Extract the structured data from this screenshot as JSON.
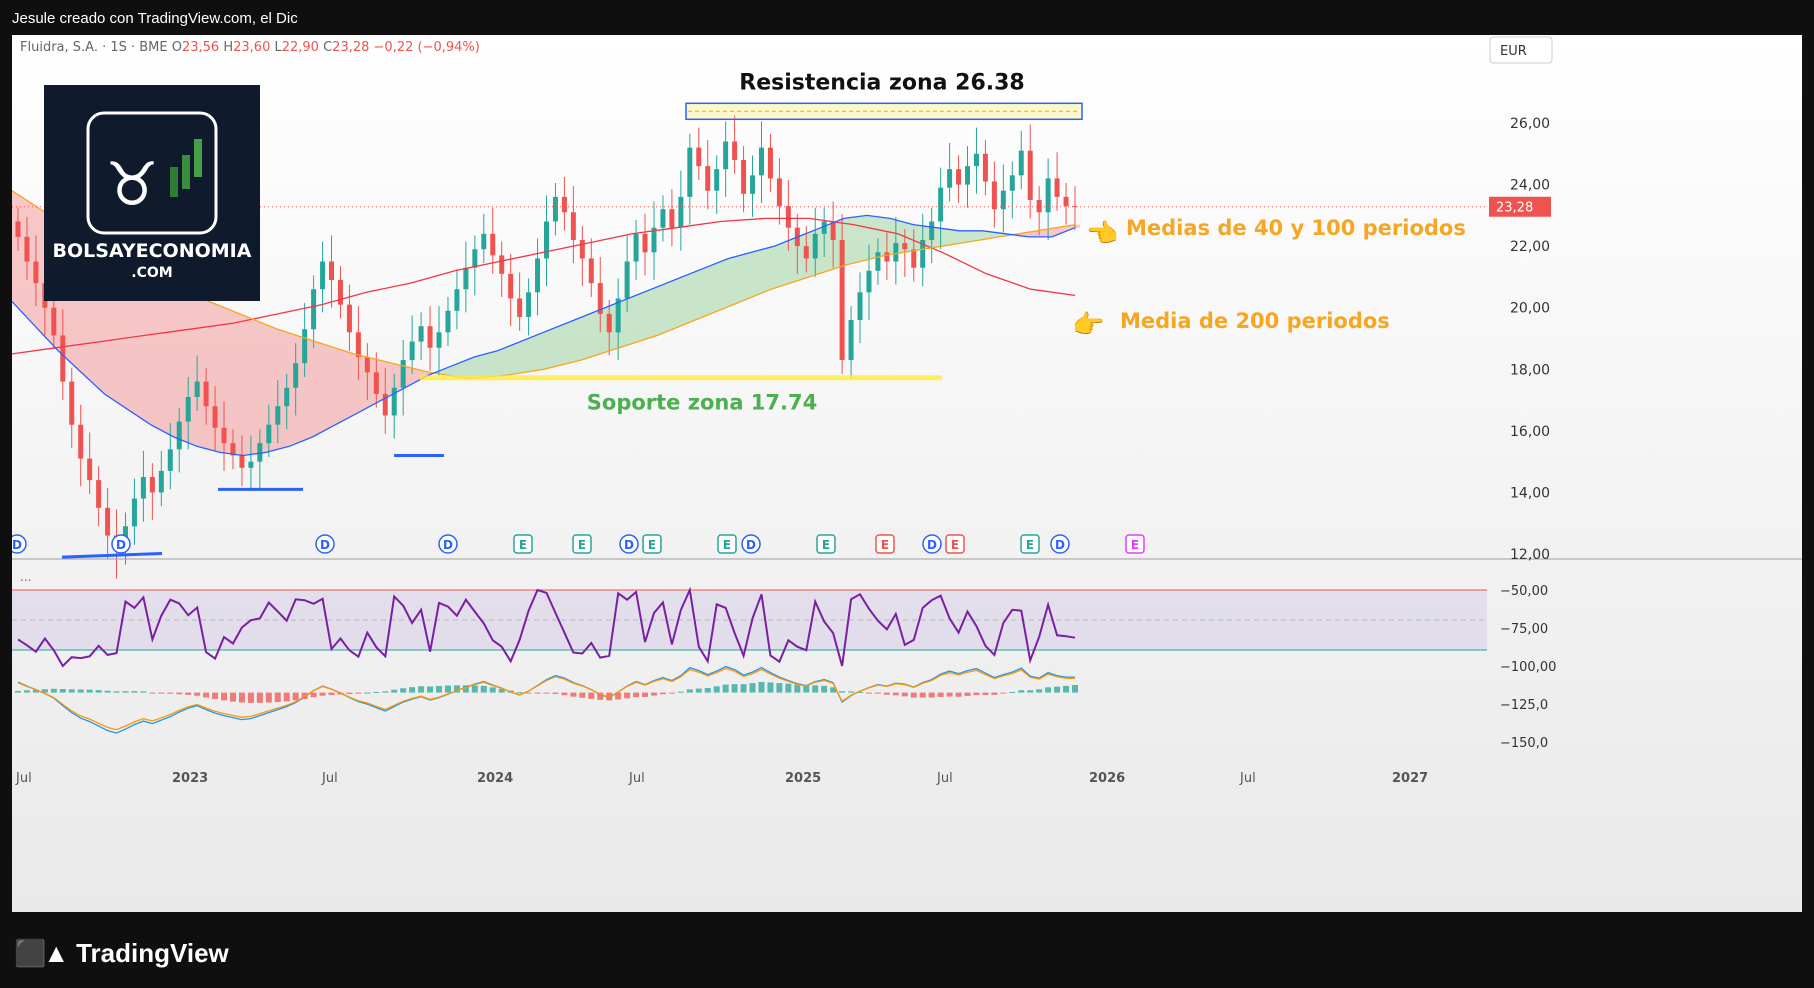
{
  "caption": "Jesule creado con TradingView.com, el Dic",
  "ohlc_header": {
    "symbol": "Fluidra, S.A. · 1S · BME",
    "o_label": "O",
    "o": "23,56",
    "h_label": "H",
    "h": "23,60",
    "l_label": "L",
    "l": "22,90",
    "c_label": "C",
    "c": "23,28",
    "change": "−0,22 (−0,94%)"
  },
  "currency": "EUR",
  "last_price": "23,28",
  "logo": {
    "line1": "BOLSAYECONOMIA",
    "line2": ".COM"
  },
  "annotations": {
    "resistance": "Resistencia zona 26.38",
    "support": "Soporte zona 17.74",
    "ma_40_100": "Medias de 40 y 100 periodos",
    "ma_200": "Media de 200 periodos"
  },
  "price_axis": [
    "26,00",
    "24,00",
    "22,00",
    "20,00",
    "18,00",
    "16,00",
    "14,00",
    "12,00"
  ],
  "osc_axis": [
    "−50,00",
    "−75,00",
    "−100,00",
    "−125,0",
    "−150,0"
  ],
  "osc_label": "...",
  "time_axis": [
    "Jul",
    "2023",
    "Jul",
    "2024",
    "Jul",
    "2025",
    "Jul",
    "2026",
    "Jul",
    "2027"
  ],
  "event_markers": [
    "D",
    "D",
    "D",
    "D",
    "E",
    "E",
    "D",
    "E",
    "E",
    "D",
    "E",
    "E",
    "D",
    "E",
    "E",
    "D",
    "E"
  ],
  "brand_name": "TradingView",
  "colors": {
    "bull": "#26a69a",
    "bear": "#ef5350",
    "ma40": "#2962ff",
    "ma100": "#f5a623",
    "ma200": "#f23645",
    "rsi": "#7b1fa2",
    "annotation_orange": "#f5a623",
    "support_green": "#4caf50"
  },
  "chart_data": {
    "type": "candlestick",
    "timeframe": "1W",
    "ylim": [
      11,
      27
    ],
    "support": 17.74,
    "resistance": 26.38,
    "close_series": [
      22.3,
      21.5,
      20.8,
      20.0,
      19.1,
      17.6,
      16.2,
      15.1,
      14.4,
      13.5,
      12.6,
      12.1,
      12.9,
      13.8,
      14.5,
      14.0,
      14.7,
      15.4,
      16.3,
      17.1,
      17.6,
      16.8,
      16.1,
      15.6,
      15.2,
      14.8,
      15.0,
      15.6,
      16.2,
      16.8,
      17.4,
      18.2,
      19.3,
      20.6,
      21.5,
      20.9,
      20.1,
      19.2,
      18.4,
      17.9,
      17.2,
      16.5,
      17.4,
      18.3,
      18.9,
      19.4,
      18.7,
      19.2,
      19.9,
      20.6,
      21.3,
      21.9,
      22.4,
      21.7,
      21.1,
      20.3,
      19.7,
      20.5,
      21.6,
      22.8,
      23.6,
      23.1,
      22.2,
      21.6,
      20.8,
      19.8,
      19.2,
      20.3,
      21.5,
      22.4,
      21.8,
      22.6,
      23.2,
      22.6,
      23.6,
      25.2,
      24.6,
      23.8,
      24.5,
      25.4,
      24.8,
      23.7,
      24.3,
      25.2,
      24.2,
      23.3,
      22.6,
      22.0,
      21.6,
      22.4,
      22.8,
      22.2,
      18.3,
      19.6,
      20.5,
      21.2,
      21.8,
      21.5,
      22.1,
      21.9,
      21.3,
      22.2,
      22.8,
      23.9,
      24.5,
      24.0,
      24.6,
      25.0,
      24.1,
      23.2,
      23.8,
      24.3,
      25.1,
      23.5,
      23.1,
      24.2,
      23.6,
      23.3,
      23.28
    ],
    "ma40": [
      20.2,
      19.4,
      18.6,
      17.9,
      17.2,
      16.7,
      16.2,
      15.8,
      15.5,
      15.3,
      15.2,
      15.3,
      15.5,
      15.8,
      16.2,
      16.6,
      17.0,
      17.4,
      17.8,
      18.1,
      18.4,
      18.6,
      18.9,
      19.2,
      19.5,
      19.8,
      20.1,
      20.4,
      20.7,
      21.0,
      21.3,
      21.6,
      21.8,
      22.0,
      22.3,
      22.6,
      22.9,
      23.0,
      22.9,
      22.7,
      22.6,
      22.5,
      22.5,
      22.4,
      22.3,
      22.3,
      22.6
    ],
    "ma100": [
      23.8,
      23.0,
      22.2,
      21.5,
      20.9,
      20.3,
      19.8,
      19.3,
      18.9,
      18.5,
      18.2,
      17.9,
      17.7,
      17.8,
      18.0,
      18.3,
      18.7,
      19.1,
      19.6,
      20.1,
      20.6,
      21.0,
      21.4,
      21.7,
      21.9,
      22.1,
      22.3,
      22.5,
      22.7
    ],
    "ma200": [
      18.5,
      18.7,
      18.9,
      19.1,
      19.3,
      19.5,
      19.8,
      20.1,
      20.5,
      20.8,
      21.2,
      21.5,
      21.8,
      22.1,
      22.4,
      22.6,
      22.8,
      22.9,
      22.9,
      22.7,
      22.4,
      21.8,
      21.1,
      20.6,
      20.4
    ]
  }
}
